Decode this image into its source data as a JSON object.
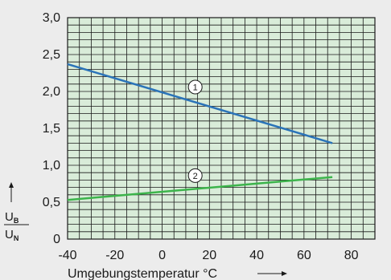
{
  "chart_data": {
    "type": "line",
    "xlabel": "Umgebungstemperatur °C",
    "ylabel": {
      "main_top": "U",
      "sub_top": "B",
      "main_bottom": "U",
      "sub_bottom": "N"
    },
    "xlim": [
      -40,
      90
    ],
    "ylim": [
      0,
      3.0
    ],
    "x_ticks": [
      -40,
      -20,
      0,
      20,
      40,
      60,
      80
    ],
    "x_tick_labels": [
      "-40",
      "-20",
      "0",
      "20",
      "40",
      "60",
      "80"
    ],
    "y_ticks": [
      0,
      0.5,
      1.0,
      1.5,
      2.0,
      2.5,
      3.0
    ],
    "y_tick_labels": [
      "0",
      "0,5",
      "1,0",
      "1,5",
      "2,0",
      "2,5",
      "3,0"
    ],
    "grid": true,
    "grid_minor_step_x": 5,
    "grid_minor_step_y": 0.1,
    "colors": {
      "background": "#d9ecd9",
      "grid": "#1a1a1a",
      "series1": "#2a73b8",
      "series2": "#3cb44b"
    },
    "series": [
      {
        "label": "1",
        "x": [
          -40,
          72
        ],
        "y": [
          2.37,
          1.3
        ],
        "label_at": [
          14,
          2.06
        ]
      },
      {
        "label": "2",
        "x": [
          -40,
          72
        ],
        "y": [
          0.53,
          0.84
        ],
        "label_at": [
          14,
          0.86
        ]
      }
    ]
  }
}
